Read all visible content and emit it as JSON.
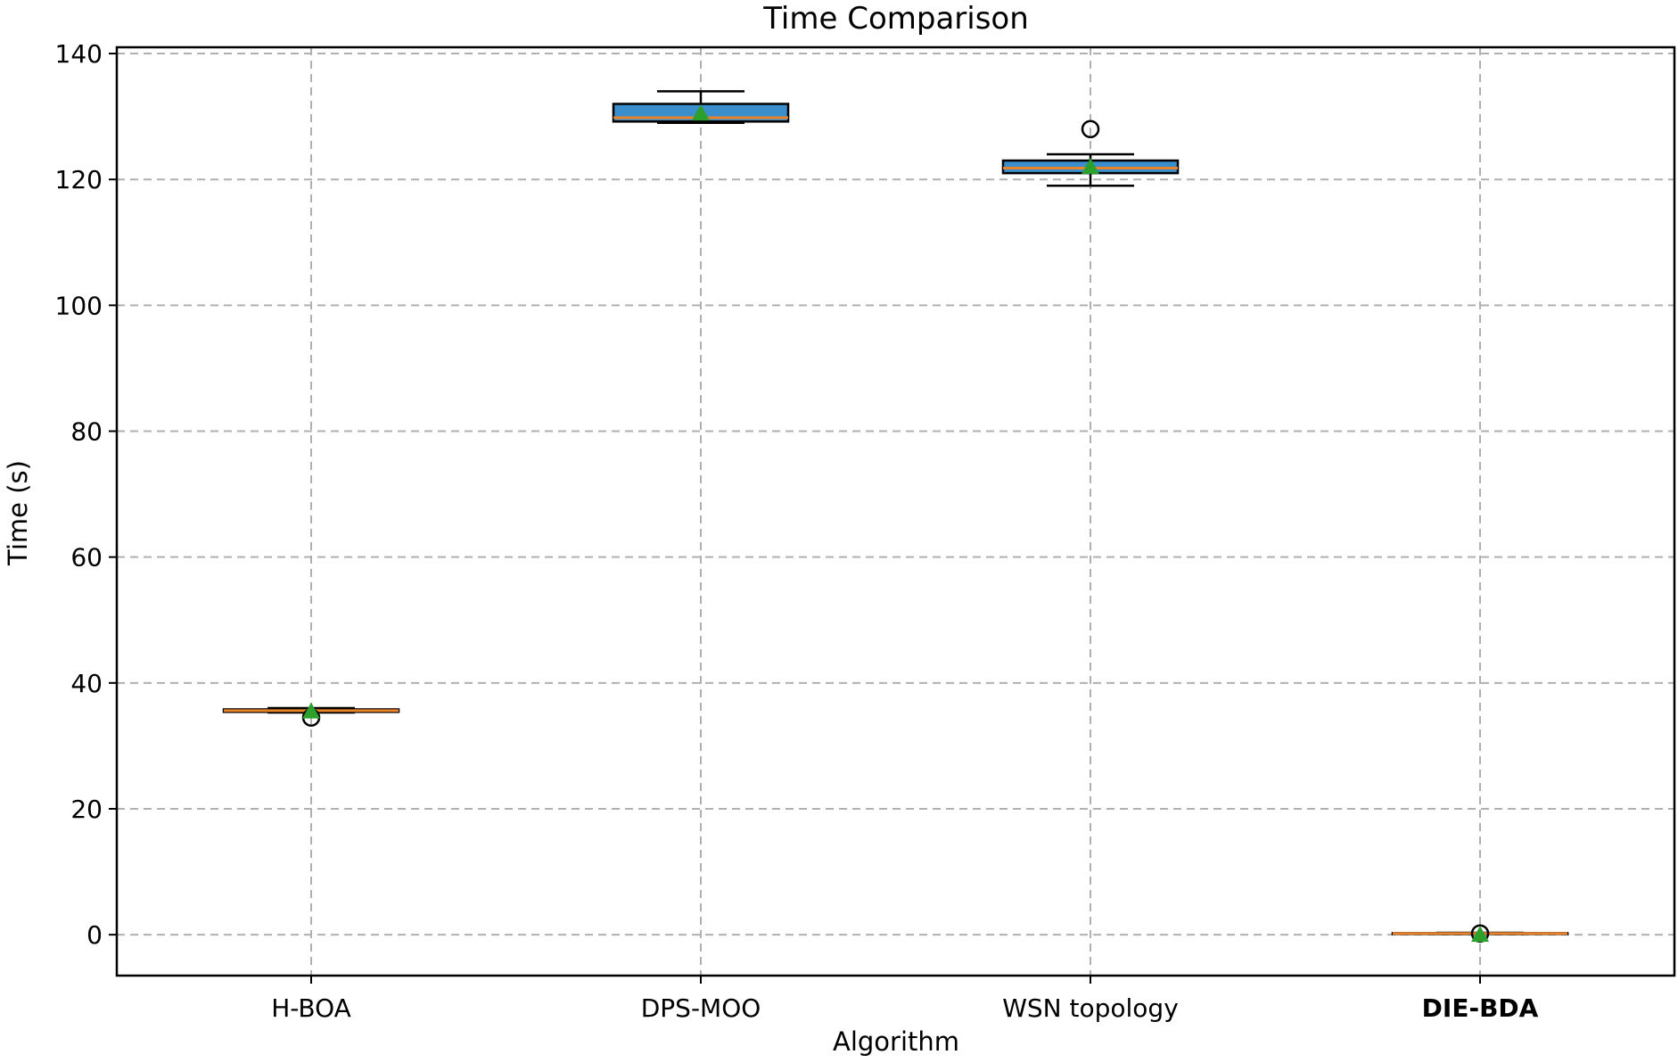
{
  "chart_data": {
    "type": "box",
    "title": "Time Comparison",
    "xlabel": "Algorithm",
    "ylabel": "Time (s)",
    "ylim": [
      -6.5,
      141
    ],
    "yticks": [
      0,
      20,
      40,
      60,
      80,
      100,
      120,
      140
    ],
    "grid": true,
    "categories": [
      "H-BOA",
      "DPS-MOO",
      "WSN topology",
      "DIE-BDA"
    ],
    "highlighted_category": "DIE-BDA",
    "boxes": [
      {
        "name": "H-BOA",
        "whisker_low": 35.3,
        "q1": 35.4,
        "median": 35.6,
        "q3": 35.8,
        "whisker_high": 36.0,
        "mean": 35.5,
        "outliers": [
          34.5
        ]
      },
      {
        "name": "DPS-MOO",
        "whisker_low": 129.0,
        "q1": 129.2,
        "median": 129.8,
        "q3": 132.0,
        "whisker_high": 134.0,
        "mean": 130.5,
        "outliers": []
      },
      {
        "name": "WSN topology",
        "whisker_low": 119.0,
        "q1": 121.0,
        "median": 121.8,
        "q3": 123.0,
        "whisker_high": 124.0,
        "mean": 122.0,
        "outliers": [
          128.0
        ]
      },
      {
        "name": "DIE-BDA",
        "whisker_low": 0.1,
        "q1": 0.15,
        "median": 0.2,
        "q3": 0.25,
        "whisker_high": 0.3,
        "mean": 0.0,
        "outliers": [
          0.2
        ]
      }
    ],
    "colors": {
      "box_fill": "#3a8ecb",
      "median": "#e9832a",
      "mean_marker": "#2ca02c",
      "whisker": "#000000",
      "outlier": "#000000"
    }
  }
}
